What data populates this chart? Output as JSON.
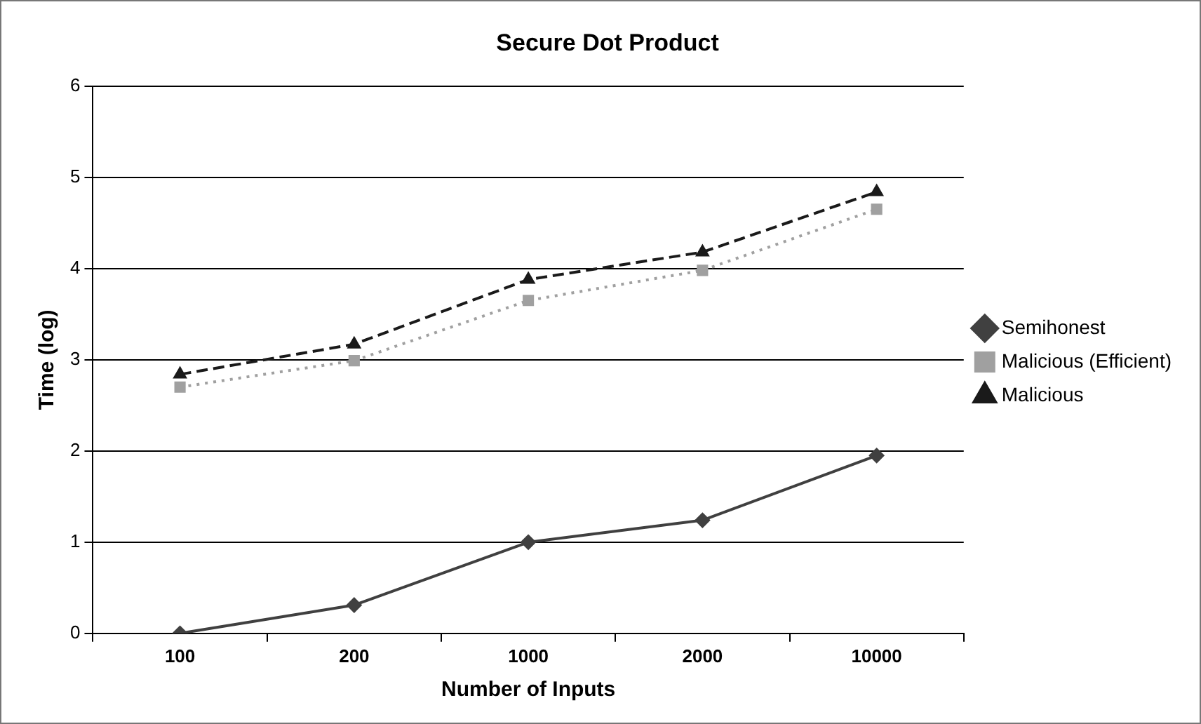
{
  "chart_data": {
    "type": "line",
    "title": "Secure Dot Product",
    "xlabel": "Number of Inputs",
    "ylabel": "Time (log)",
    "categories": [
      "100",
      "200",
      "1000",
      "2000",
      "10000"
    ],
    "series": [
      {
        "name": "Semihonest",
        "color": "#404040",
        "marker": "diamond",
        "line_style": "solid",
        "values": [
          0,
          0.31,
          1.0,
          1.24,
          1.95
        ]
      },
      {
        "name": "Malicious (Efficient)",
        "color": "#a0a0a0",
        "marker": "square",
        "line_style": "dotted",
        "values": [
          2.7,
          2.99,
          3.65,
          3.98,
          4.65
        ]
      },
      {
        "name": "Malicious",
        "color": "#1a1a1a",
        "marker": "triangle",
        "line_style": "dashed",
        "values": [
          2.84,
          3.17,
          3.88,
          4.18,
          4.84
        ]
      }
    ],
    "ylim": [
      0,
      6
    ],
    "yticks": [
      0,
      1,
      2,
      3,
      4,
      5,
      6
    ],
    "grid": "y",
    "legend": "right"
  }
}
